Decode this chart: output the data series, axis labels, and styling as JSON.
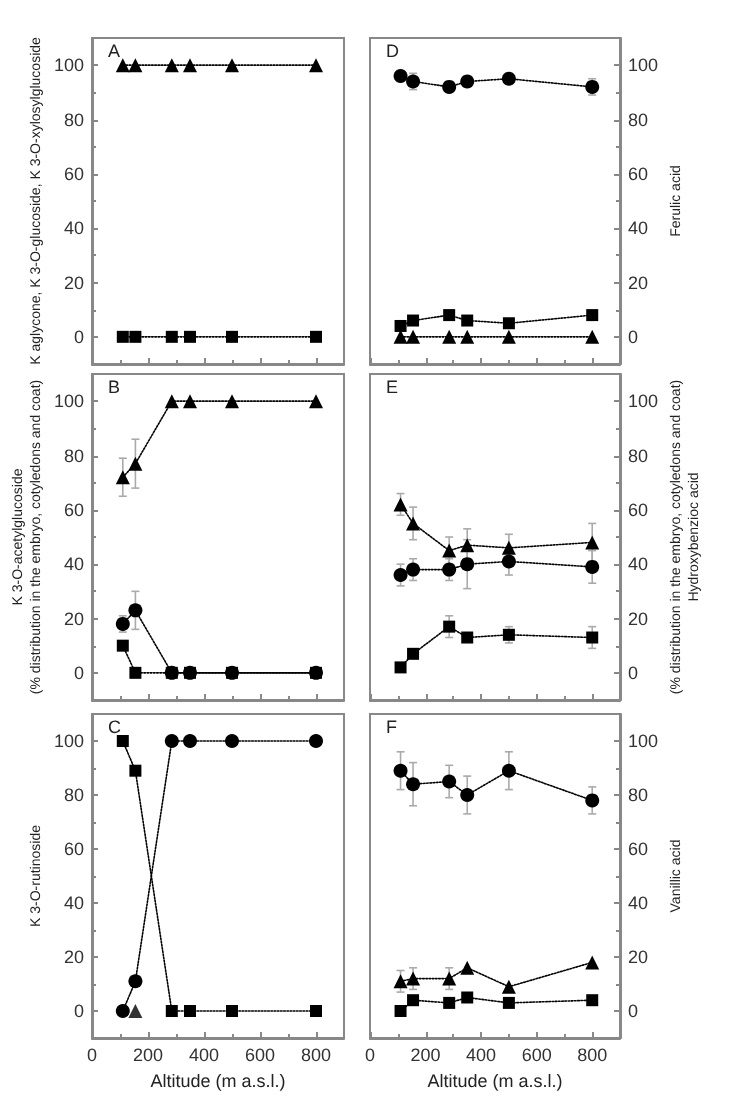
{
  "chart_data": [
    {
      "type": "line",
      "ylabel": "K aglycone, K 3-O-glucoside, K 3-O-xylosylglucoside",
      "annotations": [
        "A"
      ],
      "x": [
        110,
        155,
        285,
        350,
        500,
        800
      ],
      "xlim": [
        0,
        900
      ],
      "xticks": [
        0,
        200,
        400,
        600,
        800
      ],
      "ylim": [
        -10,
        110
      ],
      "yticks": [
        0,
        20,
        40,
        60,
        80,
        100
      ],
      "tick_labels": "y",
      "line_style": "dotted",
      "grid": false,
      "series": [
        {
          "color": "#000000",
          "marker": "square",
          "values": [
            0,
            0,
            0,
            0,
            0,
            0
          ]
        },
        {
          "color": "#000000",
          "marker": "triangle",
          "values": [
            100,
            100,
            100,
            100,
            100,
            100
          ]
        }
      ]
    },
    {
      "type": "line",
      "y2label": "Ferulic acid",
      "annotations": [
        "D"
      ],
      "x": [
        110,
        155,
        285,
        350,
        500,
        800
      ],
      "xlim": [
        0,
        900
      ],
      "xticks": [
        0,
        200,
        400,
        600,
        800
      ],
      "y2lim": [
        -10,
        110
      ],
      "y2ticks": [
        0,
        20,
        40,
        60,
        80,
        100
      ],
      "tick_labels": "y",
      "line_style": "dotted",
      "grid": false,
      "series": [
        {
          "color": "#000000",
          "marker": "circle",
          "axis": "y2",
          "values": [
            96,
            94,
            92,
            94,
            95,
            92
          ],
          "errors": [
            2,
            3,
            2,
            2,
            2,
            3
          ]
        },
        {
          "color": "#000000",
          "marker": "square",
          "axis": "y2",
          "values": [
            4,
            6,
            8,
            6,
            5,
            8
          ]
        },
        {
          "color": "#000000",
          "marker": "triangle",
          "axis": "y2",
          "values": [
            0,
            0,
            0,
            0,
            0,
            0
          ]
        }
      ]
    },
    {
      "type": "line",
      "ylabel": "K 3-O-acetylglucoside\n(% distribution in the embryo, cotyledons and coat)",
      "annotations": [
        "B"
      ],
      "x": [
        110,
        155,
        285,
        350,
        500,
        800
      ],
      "xlim": [
        0,
        900
      ],
      "xticks": [
        0,
        200,
        400,
        600,
        800
      ],
      "ylim": [
        -10,
        110
      ],
      "yticks": [
        0,
        20,
        40,
        60,
        80,
        100
      ],
      "tick_labels": "y",
      "line_style": "dotted",
      "grid": false,
      "series": [
        {
          "color": "#000000",
          "marker": "circle",
          "values": [
            18,
            23,
            0,
            0,
            0,
            0
          ],
          "errors": [
            3,
            7,
            null,
            null,
            null,
            null
          ]
        },
        {
          "color": "#000000",
          "marker": "square",
          "values": [
            10,
            0,
            0,
            0,
            0,
            0
          ]
        },
        {
          "color": "#000000",
          "marker": "triangle",
          "values": [
            72,
            77,
            100,
            100,
            100,
            100
          ],
          "errors": [
            7,
            9,
            null,
            null,
            null,
            null
          ]
        }
      ]
    },
    {
      "type": "line",
      "y2label": "(% distribution in the embryo, cotyledons and coat)\nHydroxybenzioc acid",
      "annotations": [
        "E"
      ],
      "x": [
        110,
        155,
        285,
        350,
        500,
        800
      ],
      "xlim": [
        0,
        900
      ],
      "xticks": [
        0,
        200,
        400,
        600,
        800
      ],
      "y2lim": [
        -10,
        110
      ],
      "y2ticks": [
        0,
        20,
        40,
        60,
        80,
        100
      ],
      "tick_labels": "y",
      "line_style": "dotted",
      "grid": false,
      "series": [
        {
          "color": "#000000",
          "marker": "circle",
          "axis": "y2",
          "values": [
            36,
            38,
            38,
            40,
            41,
            39
          ],
          "errors": [
            4,
            4,
            4,
            9,
            5,
            6
          ]
        },
        {
          "color": "#000000",
          "marker": "square",
          "axis": "y2",
          "values": [
            2,
            7,
            17,
            13,
            14,
            13
          ],
          "errors": [
            null,
            null,
            4,
            null,
            3,
            4
          ]
        },
        {
          "color": "#000000",
          "marker": "triangle",
          "axis": "y2",
          "values": [
            62,
            55,
            45,
            47,
            46,
            48
          ],
          "errors": [
            4,
            6,
            5,
            6,
            5,
            7
          ]
        }
      ]
    },
    {
      "type": "line",
      "xlabel": "Altitude (m a.s.l.)",
      "ylabel": "K 3-O-rutinoside",
      "annotations": [
        "C"
      ],
      "x": [
        110,
        155,
        285,
        350,
        500,
        800
      ],
      "xlim": [
        0,
        900
      ],
      "xticks": [
        0,
        200,
        400,
        600,
        800
      ],
      "ylim": [
        -10,
        110
      ],
      "yticks": [
        0,
        20,
        40,
        60,
        80,
        100
      ],
      "line_style": "dotted",
      "grid": false,
      "series": [
        {
          "color": "#000000",
          "marker": "circle",
          "values": [
            0,
            11,
            100,
            100,
            100,
            100
          ]
        },
        {
          "color": "#000000",
          "marker": "square",
          "values": [
            100,
            89,
            0,
            0,
            0,
            0
          ]
        },
        {
          "type": "scatter",
          "color": "#000000",
          "marker": "triangle",
          "values": [
            null,
            0,
            null,
            null,
            null,
            null
          ]
        }
      ]
    },
    {
      "type": "line",
      "xlabel": "Altitude (m a.s.l.)",
      "y2label": "Vanillic acid",
      "annotations": [
        "F"
      ],
      "x": [
        110,
        155,
        285,
        350,
        500,
        800
      ],
      "xlim": [
        0,
        900
      ],
      "xticks": [
        0,
        200,
        400,
        600,
        800
      ],
      "y2lim": [
        -10,
        110
      ],
      "y2ticks": [
        0,
        20,
        40,
        60,
        80,
        100
      ],
      "line_style": "dotted",
      "grid": false,
      "series": [
        {
          "color": "#000000",
          "marker": "circle",
          "axis": "y2",
          "values": [
            89,
            84,
            85,
            80,
            89,
            78
          ],
          "errors": [
            7,
            8,
            6,
            7,
            7,
            5
          ]
        },
        {
          "color": "#000000",
          "marker": "square",
          "axis": "y2",
          "values": [
            0,
            4,
            3,
            5,
            3,
            4
          ]
        },
        {
          "color": "#000000",
          "marker": "triangle",
          "axis": "y2",
          "values": [
            11,
            12,
            12,
            16,
            9,
            18
          ],
          "errors": [
            4,
            4,
            4,
            null,
            null,
            null
          ]
        }
      ]
    }
  ]
}
